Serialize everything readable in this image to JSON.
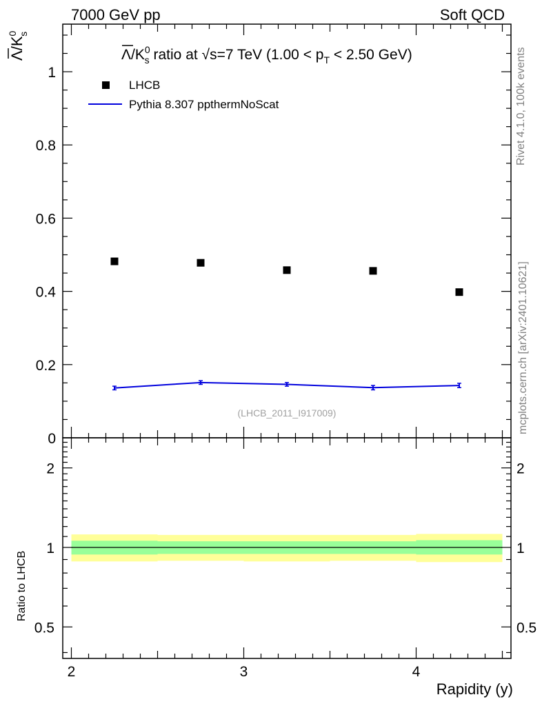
{
  "header": {
    "left": "7000 GeV pp",
    "right": "Soft QCD"
  },
  "side_labels": {
    "rivet": "Rivet 4.1.0,  100k events",
    "mcplots": "mcplots.cern.ch [arXiv:2401.10621]"
  },
  "analysis_id": "(LHCB_2011_I917009)",
  "title": {
    "ratio_text": " ratio at ",
    "sqrt": "s",
    "energy": "=7 TeV (1.00 < p",
    "sub": "T",
    "tail": " < 2.50 GeV)"
  },
  "ylabel": {
    "lambda": "Λ",
    "k": "/K",
    "sup": "0",
    "sub": "s"
  },
  "chart_data": {
    "type": "scatter",
    "xlabel": "Rapidity (y)",
    "xlim": [
      1.95,
      4.55
    ],
    "x_ticks": [
      "2",
      "3",
      "4"
    ],
    "main": {
      "ylim": [
        0,
        1.13
      ],
      "y_ticks": [
        "0",
        "0.2",
        "0.4",
        "0.6",
        "0.8",
        "1"
      ],
      "series": [
        {
          "name": "LHCB",
          "type": "points",
          "color": "#000000",
          "x": [
            2.25,
            2.75,
            3.25,
            3.75,
            4.25
          ],
          "y": [
            0.482,
            0.478,
            0.458,
            0.456,
            0.398
          ]
        },
        {
          "name": "Pythia 8.307 ppthermNoScat",
          "type": "line",
          "color": "#0000dd",
          "x": [
            2.25,
            2.75,
            3.25,
            3.75,
            4.25
          ],
          "y": [
            0.136,
            0.151,
            0.146,
            0.137,
            0.143
          ],
          "yerr": [
            0.005,
            0.005,
            0.005,
            0.006,
            0.006
          ]
        }
      ]
    },
    "ratio": {
      "ylabel": "Ratio to LHCB",
      "ylog": true,
      "ylim": [
        0.38,
        2.6
      ],
      "y_ticks": [
        "0.5",
        "1",
        "2"
      ],
      "bins": [
        [
          2.0,
          2.5
        ],
        [
          2.5,
          3.0
        ],
        [
          3.0,
          3.5
        ],
        [
          3.5,
          4.0
        ],
        [
          4.0,
          4.5
        ]
      ],
      "band_inner": [
        [
          0.94,
          1.06
        ],
        [
          0.945,
          1.055
        ],
        [
          0.945,
          1.055
        ],
        [
          0.945,
          1.055
        ],
        [
          0.94,
          1.065
        ]
      ],
      "band_outer": [
        [
          0.885,
          1.12
        ],
        [
          0.89,
          1.115
        ],
        [
          0.885,
          1.115
        ],
        [
          0.89,
          1.115
        ],
        [
          0.88,
          1.125
        ]
      ],
      "band_inner_color": "#99ff99",
      "band_outer_color": "#ffff99",
      "reference": 1.0
    }
  }
}
